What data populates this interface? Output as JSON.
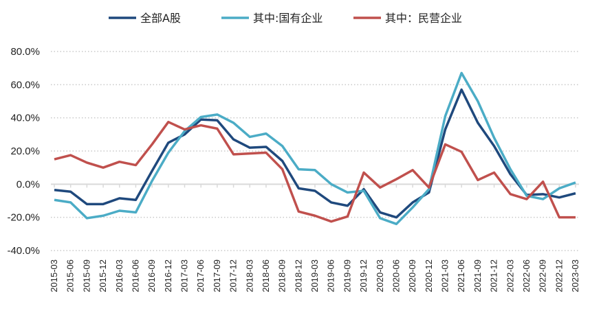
{
  "chart_data": {
    "type": "line",
    "title": "",
    "xlabel": "",
    "ylabel": "",
    "ylim": [
      -40,
      80
    ],
    "yticks": [
      80,
      60,
      40,
      20,
      0,
      -20,
      -40
    ],
    "ytick_labels": [
      "80.0%",
      "60.0%",
      "40.0%",
      "20.0%",
      "0.0%",
      "-20.0%",
      "-40.0%"
    ],
    "grid": true,
    "legend_position": "top",
    "x": [
      "2015-03",
      "2015-06",
      "2015-09",
      "2015-12",
      "2016-03",
      "2016-06",
      "2016-09",
      "2016-12",
      "2017-03",
      "2017-06",
      "2017-09",
      "2017-12",
      "2018-03",
      "2018-06",
      "2018-09",
      "2018-12",
      "2019-03",
      "2019-06",
      "2019-09",
      "2019-12",
      "2020-03",
      "2020-06",
      "2020-09",
      "2020-12",
      "2021-03",
      "2021-06",
      "2021-09",
      "2021-12",
      "2022-03",
      "2022-06",
      "2022-09",
      "2022-12",
      "2023-03"
    ],
    "series": [
      {
        "name": "全部A股",
        "color": "#1f497d",
        "values": [
          -3.5,
          -4.5,
          -12,
          -12,
          -8.5,
          -9.5,
          8,
          25,
          30,
          39,
          38.5,
          27,
          22,
          22.5,
          14,
          -2.5,
          -4,
          -11,
          -13,
          -3,
          -17,
          -20,
          -11,
          -5,
          33,
          57,
          37,
          23,
          6,
          -6.5,
          -6,
          -8,
          -5.5
        ]
      },
      {
        "name": "其中:国有企业",
        "color": "#4bacc6",
        "values": [
          -9.5,
          -11,
          -20.5,
          -19,
          -16,
          -17,
          2,
          19,
          32,
          40.5,
          42,
          37,
          28.5,
          30.5,
          23,
          9,
          8.5,
          0,
          -5,
          -4,
          -20.5,
          -24,
          -14,
          -3,
          41,
          67,
          50,
          28,
          9,
          -7,
          -9,
          -2.5,
          1
        ]
      },
      {
        "name": "其中：民营企业",
        "color": "#c0504d",
        "values": [
          15,
          17.5,
          13,
          10,
          13.5,
          11.5,
          24,
          37.5,
          33,
          35.5,
          33.5,
          18,
          18.5,
          19,
          9,
          -16.5,
          -19,
          -22.5,
          -19.5,
          7,
          -2,
          3,
          8.5,
          -2,
          24,
          19.5,
          2.5,
          7,
          -6,
          -9,
          1.5,
          -20,
          -20
        ]
      }
    ]
  }
}
